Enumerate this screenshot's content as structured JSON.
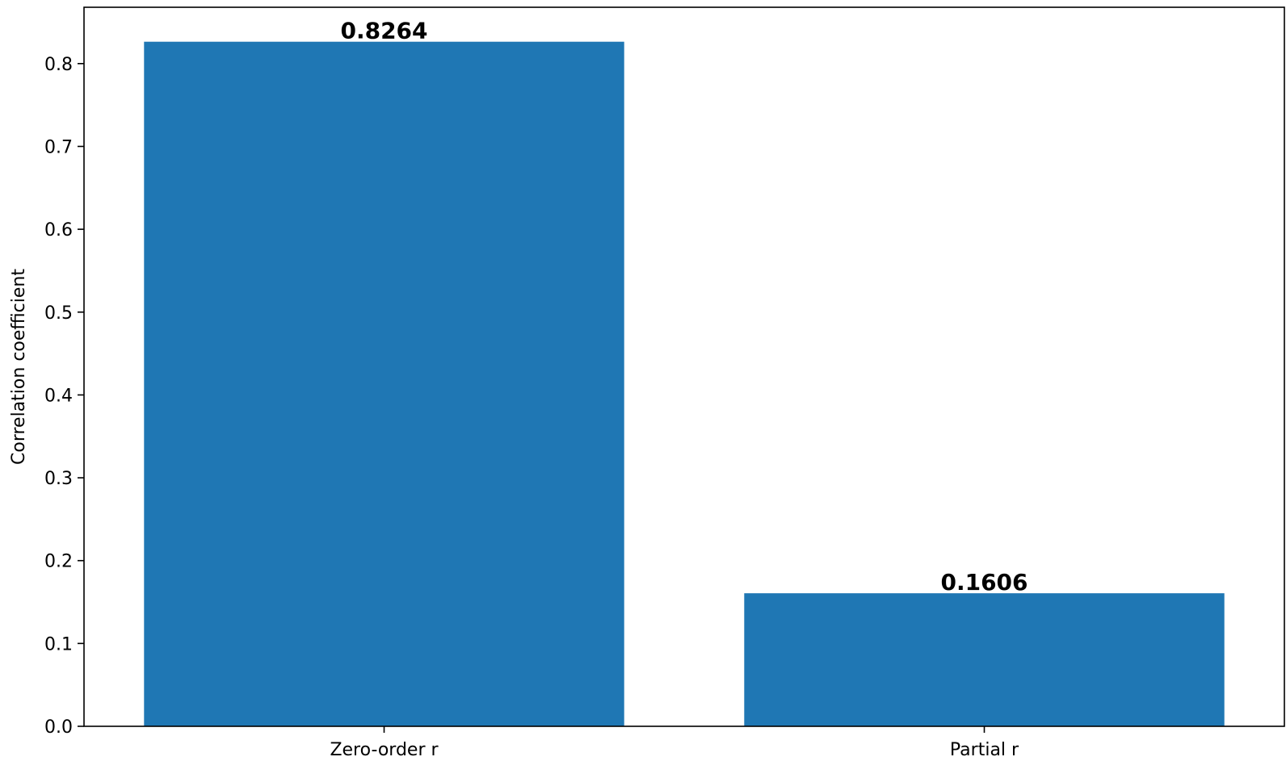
{
  "chart_data": {
    "type": "bar",
    "categories": [
      "Zero-order r",
      "Partial r"
    ],
    "values": [
      0.8264,
      0.1606
    ],
    "data_labels": [
      "0.8264",
      "0.1606"
    ],
    "title": "",
    "xlabel": "",
    "ylabel": "Correlation coefficient",
    "ylim": [
      0,
      0.868
    ],
    "yticks": [
      0.0,
      0.1,
      0.2,
      0.3,
      0.4,
      0.5,
      0.6,
      0.7,
      0.8
    ],
    "ytick_labels": [
      "0.0",
      "0.1",
      "0.2",
      "0.3",
      "0.4",
      "0.5",
      "0.6",
      "0.7",
      "0.8"
    ],
    "grid": false,
    "legend": "none",
    "colors": {
      "bar": "#1f77b4",
      "axis": "#000000",
      "background": "#ffffff"
    }
  }
}
